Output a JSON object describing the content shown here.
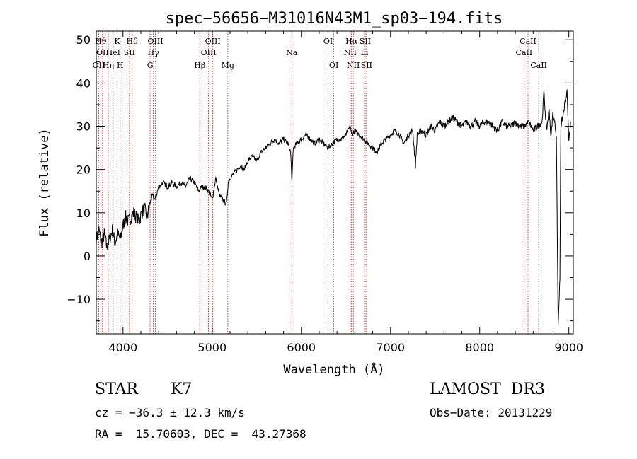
{
  "chart_data": {
    "type": "line",
    "title": "spec−56656−M31016N43M1_sp03−194.fits",
    "xlabel": "Wavelength (Å)",
    "ylabel": "Flux (relative)",
    "xlim": [
      3700,
      9050
    ],
    "ylim": [
      -18,
      52
    ],
    "xticks": [
      4000,
      5000,
      6000,
      7000,
      8000,
      9000
    ],
    "yticks": [
      -10,
      0,
      10,
      20,
      30,
      40,
      50
    ],
    "xtick_labels": [
      "4000",
      "5000",
      "6000",
      "7000",
      "8000",
      "9000"
    ],
    "ytick_labels": [
      "−10",
      "0",
      "10",
      "20",
      "30",
      "40",
      "50"
    ],
    "grid": false,
    "line_color": "#000000",
    "marker_color": "#b22222",
    "series": [
      {
        "x": [
          3700,
          3730,
          3760,
          3790,
          3820,
          3850,
          3880,
          3910,
          3940,
          3970,
          4000,
          4030,
          4060,
          4090,
          4120,
          4150,
          4180,
          4210,
          4240,
          4270,
          4300,
          4330,
          4360,
          4400,
          4450,
          4500,
          4550,
          4600,
          4650,
          4700,
          4750,
          4800,
          4850,
          4880,
          4920,
          4960,
          5000,
          5040,
          5080,
          5120,
          5160,
          5180,
          5200,
          5240,
          5280,
          5320,
          5360,
          5400,
          5450,
          5500,
          5550,
          5600,
          5650,
          5700,
          5750,
          5800,
          5850,
          5880,
          5895,
          5910,
          5950,
          6000,
          6050,
          6100,
          6150,
          6200,
          6250,
          6300,
          6350,
          6400,
          6450,
          6500,
          6550,
          6563,
          6600,
          6650,
          6700,
          6750,
          6800,
          6850,
          6900,
          6950,
          7000,
          7050,
          7100,
          7150,
          7200,
          7250,
          7280,
          7300,
          7350,
          7400,
          7450,
          7500,
          7550,
          7600,
          7650,
          7700,
          7750,
          7800,
          7850,
          7900,
          7950,
          8000,
          8050,
          8100,
          8150,
          8200,
          8250,
          8300,
          8350,
          8400,
          8450,
          8500,
          8550,
          8600,
          8650,
          8700,
          8720,
          8750,
          8780,
          8800,
          8820,
          8840,
          8860,
          8880,
          8900,
          8910,
          8920,
          8940,
          8960,
          8980,
          9000,
          9020
        ],
        "y": [
          4,
          6,
          3,
          5,
          2,
          4,
          6,
          3,
          5,
          4,
          7,
          9,
          8,
          9,
          10,
          9,
          8,
          10,
          11,
          9,
          12,
          14,
          13,
          16,
          17,
          16,
          17,
          16,
          17,
          16,
          18,
          17,
          15,
          16,
          16,
          15,
          13,
          18,
          14,
          13,
          12,
          17,
          18,
          19,
          20,
          21,
          20,
          22,
          23,
          22,
          24,
          25,
          26,
          27,
          26,
          27,
          26,
          24,
          17,
          25,
          26,
          27,
          28,
          27,
          26,
          27,
          26,
          25,
          26,
          27,
          27,
          28,
          30,
          28,
          29,
          28,
          27,
          26,
          25,
          24,
          26,
          27,
          28,
          29,
          28,
          26,
          28,
          29,
          21,
          28,
          29,
          28,
          30,
          29,
          31,
          30,
          31,
          32,
          31,
          30,
          31,
          30,
          31,
          30,
          31,
          31,
          30,
          29,
          31,
          30,
          30,
          31,
          30,
          30,
          31,
          29,
          30,
          31,
          38,
          29,
          34,
          27,
          33,
          31,
          28,
          -16,
          -5,
          30,
          31,
          33,
          36,
          38,
          26,
          31
        ],
        "color": "#000000"
      }
    ],
    "line_markers": [
      {
        "wl": 3727,
        "label": "OII",
        "row": 3
      },
      {
        "wl": 3750,
        "label": "Hθ",
        "row": 1
      },
      {
        "wl": 3770,
        "label": "OII",
        "row": 2
      },
      {
        "wl": 3835,
        "label": "Hη",
        "row": 3
      },
      {
        "wl": 3889,
        "label": "HeI",
        "row": 2
      },
      {
        "wl": 3934,
        "label": "K",
        "row": 1
      },
      {
        "wl": 3968,
        "label": "H",
        "row": 3
      },
      {
        "wl": 4072,
        "label": "SII",
        "row": 2
      },
      {
        "wl": 4102,
        "label": "Hδ",
        "row": 1
      },
      {
        "wl": 4304,
        "label": "G",
        "row": 3
      },
      {
        "wl": 4340,
        "label": "Hγ",
        "row": 2
      },
      {
        "wl": 4363,
        "label": "OIII",
        "row": 1
      },
      {
        "wl": 4861,
        "label": "Hβ",
        "row": 3
      },
      {
        "wl": 4959,
        "label": "OIII",
        "row": 2
      },
      {
        "wl": 5007,
        "label": "OIII",
        "row": 1
      },
      {
        "wl": 5175,
        "label": "Mg",
        "row": 3
      },
      {
        "wl": 5893,
        "label": "Na",
        "row": 2
      },
      {
        "wl": 6300,
        "label": "OI",
        "row": 1
      },
      {
        "wl": 6364,
        "label": "OI",
        "row": 3
      },
      {
        "wl": 6548,
        "label": "NII",
        "row": 2
      },
      {
        "wl": 6563,
        "label": "Hα",
        "row": 1
      },
      {
        "wl": 6583,
        "label": "NII",
        "row": 3
      },
      {
        "wl": 6708,
        "label": "Li",
        "row": 2
      },
      {
        "wl": 6716,
        "label": "SII",
        "row": 1
      },
      {
        "wl": 6731,
        "label": "SII",
        "row": 3
      },
      {
        "wl": 8498,
        "label": "CaII",
        "row": 2
      },
      {
        "wl": 8542,
        "label": "CaII",
        "row": 1
      },
      {
        "wl": 8662,
        "label": "CaII",
        "row": 3
      }
    ]
  },
  "info": {
    "object_class": "STAR",
    "subclass": "K7",
    "survey": "LAMOST  DR3",
    "cz": "cz = −36.3 ± 12.3 km/s",
    "obs_date": "Obs−Date: 20131229",
    "radec": "RA =  15.70603, DEC =  43.27368"
  }
}
